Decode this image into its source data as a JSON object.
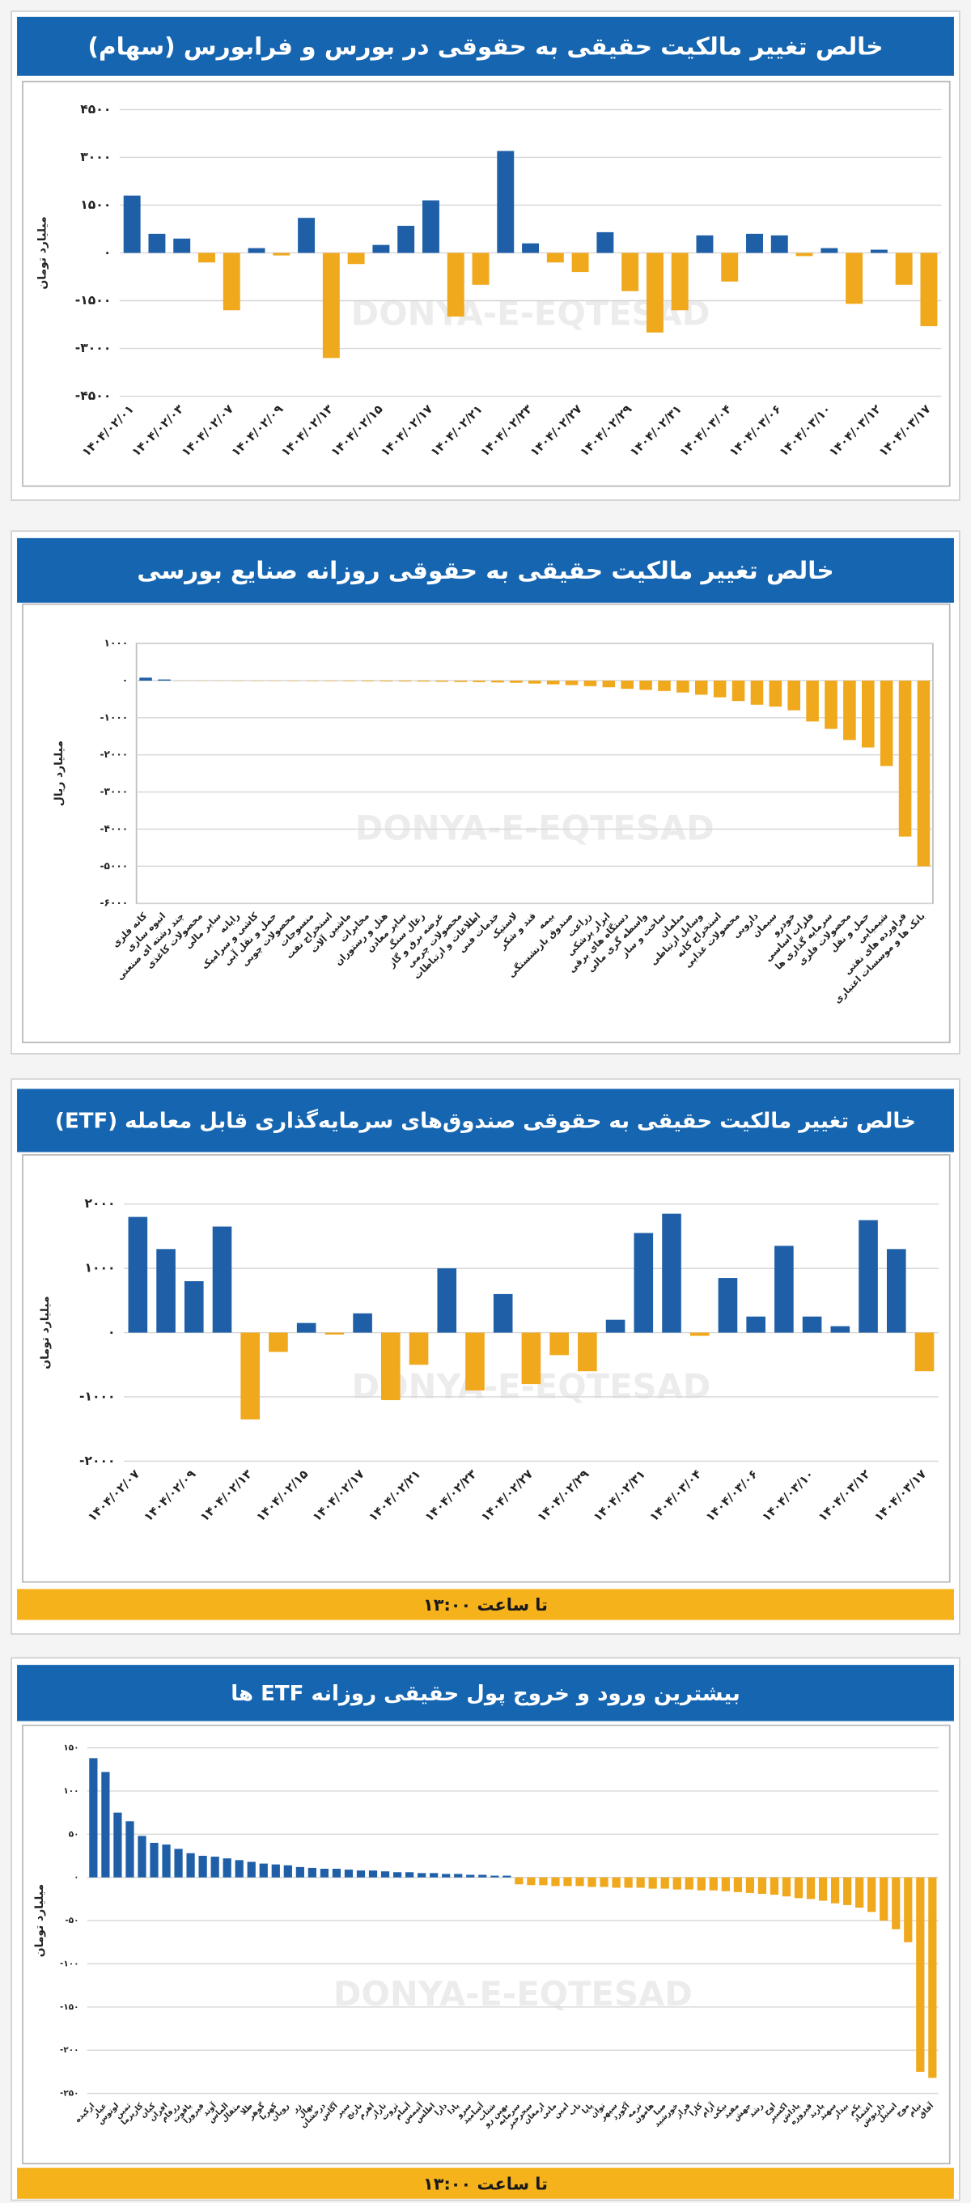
{
  "watermark": "DONYA-E-EQTESAD",
  "chart_data": [
    {
      "type": "bar",
      "title": "خالص تغییر مالکیت حقیقی به حقوقی در بورس و فرابورس (سهام)",
      "y_label": "میلیارد تومان",
      "categories": [
        "۱۴۰۴/۰۲/۰۱",
        null,
        "۱۴۰۴/۰۲/۰۳",
        null,
        "۱۴۰۴/۰۲/۰۷",
        null,
        "۱۴۰۴/۰۲/۰۹",
        null,
        "۱۴۰۴/۰۲/۱۳",
        null,
        "۱۴۰۴/۰۲/۱۵",
        null,
        "۱۴۰۴/۰۲/۱۷",
        null,
        "۱۴۰۴/۰۲/۲۱",
        null,
        "۱۴۰۴/۰۲/۲۳",
        null,
        "۱۴۰۴/۰۲/۲۷",
        null,
        "۱۴۰۴/۰۲/۲۹",
        null,
        "۱۴۰۴/۰۲/۳۱",
        null,
        "۱۴۰۴/۰۳/۰۴",
        null,
        "۱۴۰۴/۰۳/۰۶",
        null,
        "۱۴۰۴/۰۳/۱۰",
        null,
        "۱۴۰۴/۰۳/۱۲",
        null,
        "۱۴۰۴/۰۳/۱۷"
      ],
      "values": [
        1800,
        600,
        450,
        -300,
        -1800,
        150,
        -80,
        1100,
        -3300,
        -350,
        250,
        850,
        1650,
        -2000,
        -1000,
        3200,
        300,
        -300,
        -600,
        650,
        -1200,
        -2500,
        -1800,
        550,
        -900,
        600,
        550,
        -100,
        150,
        -1600,
        100,
        -1000,
        -2300
      ],
      "positive_color": "#1f5fa8",
      "negative_color": "#f0a81c",
      "ylim": [
        -4500,
        4500
      ],
      "yticks": [
        {
          "value": 4500,
          "label": "۴۵۰۰"
        },
        {
          "value": 3000,
          "label": "۳۰۰۰"
        },
        {
          "value": 1500,
          "label": "۱۵۰۰"
        },
        {
          "value": 0,
          "label": "۰"
        },
        {
          "value": -1500,
          "label": "-۱۵۰۰"
        },
        {
          "value": -3000,
          "label": "-۳۰۰۰"
        },
        {
          "value": -4500,
          "label": "-۴۵۰۰"
        }
      ],
      "grid": true
    },
    {
      "type": "bar",
      "title": "خالص تغییر مالکیت حقیقی به حقوقی روزانه صنایع بورسی",
      "y_label": "میلیارد ریال",
      "categories": [
        "کانه فلزی",
        "انبوه سازی",
        "چند رشته ای صنعتی",
        "محصولات کاغذی",
        "سایر مالی",
        "رایانه",
        "کاشی و سرامیک",
        "حمل و نقل آبی",
        "محصولات چوبی",
        "منسوجات",
        "استخراج نفت",
        "ماشین آلات",
        "مخابرات",
        "هتل و رستوران",
        "سایر معادن",
        "زغال سنگ",
        "عرضه برق و گاز",
        "محصولات چرمی",
        "اطلاعات و ارتباطات",
        "خدمات فنی",
        "لاستیک",
        "قند و شکر",
        "بیمه",
        "صندوق بازنشستگی",
        "زراعت",
        "ابزار پزشکی",
        "دستگاه های برقی",
        "واسطه گری مالی",
        "ساخت و ساز",
        "مبلمان",
        "وسایل ارتباطی",
        "استخراج کانه",
        "محصولات غذایی",
        "دارویی",
        "سیمان",
        "خودرو",
        "فلزات اساسی",
        "سرمایه گذاری ها",
        "محصولات فلزی",
        "حمل و نقل",
        "شیمیایی",
        "فراورده های نفتی",
        "بانک ها و موسسات اعتباری"
      ],
      "values": [
        80,
        30,
        -3,
        -5,
        -5,
        -6,
        -8,
        -8,
        -10,
        -10,
        -12,
        -15,
        -18,
        -20,
        -22,
        -25,
        -30,
        -35,
        -40,
        -50,
        -60,
        -80,
        -100,
        -120,
        -150,
        -180,
        -220,
        -250,
        -280,
        -320,
        -380,
        -450,
        -550,
        -650,
        -700,
        -800,
        -1100,
        -1300,
        -1600,
        -1800,
        -2300,
        -4200,
        -5000
      ],
      "positive_color": "#1f5fa8",
      "negative_color": "#f0a81c",
      "ylim": [
        -6000,
        1000
      ],
      "yticks": [
        {
          "value": 1000,
          "label": "۱۰۰۰"
        },
        {
          "value": 0,
          "label": "۰"
        },
        {
          "value": -1000,
          "label": "-۱۰۰۰"
        },
        {
          "value": -2000,
          "label": "-۲۰۰۰"
        },
        {
          "value": -3000,
          "label": "-۳۰۰۰"
        },
        {
          "value": -4000,
          "label": "-۴۰۰۰"
        },
        {
          "value": -5000,
          "label": "-۵۰۰۰"
        },
        {
          "value": -6000,
          "label": "-۶۰۰۰"
        }
      ],
      "grid": true
    },
    {
      "type": "bar",
      "title": "خالص تغییر مالکیت حقیقی به حقوقی صندوق‌های سرمایه‌گذاری قابل معامله (ETF)",
      "y_label": "میلیارد تومان",
      "footer": "تا ساعت ۱۳:۰۰",
      "categories": [
        "۱۴۰۴/۰۲/۰۷",
        null,
        "۱۴۰۴/۰۲/۰۹",
        null,
        "۱۴۰۴/۰۲/۱۳",
        null,
        "۱۴۰۴/۰۲/۱۵",
        null,
        "۱۴۰۴/۰۲/۱۷",
        null,
        "۱۴۰۴/۰۲/۲۱",
        null,
        "۱۴۰۴/۰۲/۲۳",
        null,
        "۱۴۰۴/۰۲/۲۷",
        null,
        "۱۴۰۴/۰۲/۲۹",
        null,
        "۱۴۰۴/۰۲/۳۱",
        null,
        "۱۴۰۴/۰۳/۰۴",
        null,
        "۱۴۰۴/۰۳/۰۶",
        null,
        "۱۴۰۴/۰۳/۱۰",
        null,
        "۱۴۰۴/۰۳/۱۲",
        null,
        "۱۴۰۴/۰۳/۱۷"
      ],
      "values": [
        1800,
        1300,
        800,
        1650,
        -1350,
        -300,
        150,
        -30,
        300,
        -1050,
        -500,
        1000,
        -900,
        600,
        -800,
        -350,
        -600,
        200,
        1550,
        1850,
        -50,
        850,
        250,
        1350,
        250,
        100,
        1750,
        1300,
        -600
      ],
      "positive_color": "#1f5fa8",
      "negative_color": "#f0a81c",
      "ylim": [
        -2000,
        2000
      ],
      "yticks": [
        {
          "value": 2000,
          "label": "۲۰۰۰"
        },
        {
          "value": 1000,
          "label": "۱۰۰۰"
        },
        {
          "value": 0,
          "label": "۰"
        },
        {
          "value": -1000,
          "label": "-۱۰۰۰"
        },
        {
          "value": -2000,
          "label": "-۲۰۰۰"
        }
      ],
      "grid": true
    },
    {
      "type": "bar",
      "title": "بیشترین ورود و خروج پول حقیقی روزانه ETF ها",
      "y_label": "میلیارد تومان",
      "footer": "تا ساعت ۱۳:۰۰",
      "categories": [
        "ارکیده",
        "عیار",
        "لوتوس",
        "ثمین",
        "کاریزما",
        "کیان",
        "افران",
        "زرفام",
        "یاقوت",
        "فیروزا",
        "آوند",
        "الماس",
        "مثقال",
        "طلا",
        "گوهر",
        "کهربا",
        "رویان",
        "زر",
        "نهال",
        "درخشان",
        "آگاس",
        "سپر",
        "نارنج",
        "اهرم",
        "تاراز",
        "ثروت",
        "آسام",
        "آتیمس",
        "اطلس",
        "دارا",
        "پادا",
        "سرو",
        "آسامید",
        "شتاب",
        "بهین رو",
        "سرمایه",
        "سحرخیز",
        "ارمغان",
        "مانی",
        "امین",
        "ناب",
        "پایا",
        "توان",
        "سپهر",
        "آکورد",
        "ترمه",
        "هامون",
        "صبا",
        "خورشید",
        "فراز",
        "کارا",
        "آرام",
        "نیکی",
        "مفید",
        "جهش",
        "رشد",
        "اوج",
        "اکسیر",
        "پاداش",
        "فیروزه",
        "پارند",
        "سهند",
        "بیدار",
        "یکم",
        "اعتماد",
        "داریوش",
        "استیل",
        "موج",
        "تیام",
        "آفاق"
      ],
      "values": [
        138,
        122,
        75,
        65,
        48,
        40,
        38,
        33,
        28,
        25,
        24,
        22,
        20,
        18,
        16,
        15,
        14,
        12,
        11,
        10,
        10,
        9,
        8,
        8,
        7,
        6,
        6,
        5,
        5,
        4,
        4,
        3,
        3,
        2,
        2,
        -8,
        -9,
        -9,
        -10,
        -10,
        -10,
        -11,
        -11,
        -12,
        -12,
        -12,
        -13,
        -13,
        -14,
        -14,
        -15,
        -15,
        -16,
        -17,
        -18,
        -19,
        -20,
        -22,
        -24,
        -25,
        -27,
        -30,
        -32,
        -35,
        -40,
        -50,
        -60,
        -75,
        -225,
        -232
      ],
      "positive_color": "#1f5fa8",
      "negative_color": "#f0a81c",
      "ylim": [
        -250,
        150
      ],
      "yticks": [
        {
          "value": 150,
          "label": "۱۵۰"
        },
        {
          "value": 100,
          "label": "۱۰۰"
        },
        {
          "value": 50,
          "label": "۵۰"
        },
        {
          "value": 0,
          "label": "۰"
        },
        {
          "value": -50,
          "label": "-۵۰"
        },
        {
          "value": -100,
          "label": "-۱۰۰"
        },
        {
          "value": -150,
          "label": "-۱۵۰"
        },
        {
          "value": -200,
          "label": "-۲۰۰"
        },
        {
          "value": -250,
          "label": "-۲۵۰"
        }
      ],
      "grid": true
    }
  ]
}
